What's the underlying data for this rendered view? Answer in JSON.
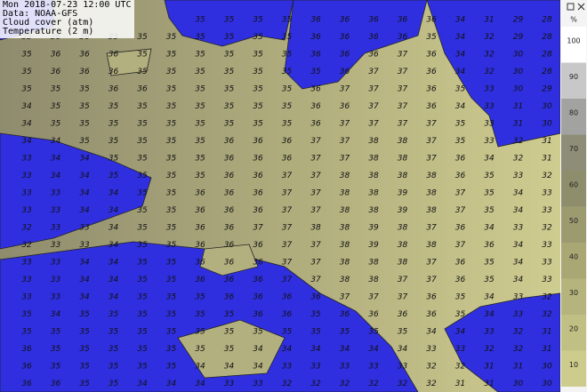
{
  "info": {
    "lines": [
      "Mon 2018-07-23 12:00 UTC",
      "Data: NOAA-GFS",
      "Cloud cover (atm)",
      "Temperature (2 m)"
    ]
  },
  "legend": {
    "unit": "%",
    "labels": [
      100,
      90,
      80,
      70,
      60,
      50,
      40,
      30,
      20,
      10
    ]
  },
  "grid": {
    "rows": [
      [
        null,
        null,
        null,
        null,
        null,
        null,
        35,
        35,
        35,
        35,
        36,
        36,
        36,
        36,
        36,
        34,
        31,
        29,
        28
      ],
      [
        35,
        36,
        36,
        35,
        35,
        35,
        35,
        35,
        35,
        35,
        36,
        36,
        36,
        36,
        35,
        34,
        32,
        29,
        28
      ],
      [
        35,
        36,
        36,
        36,
        35,
        35,
        35,
        35,
        35,
        35,
        36,
        36,
        36,
        37,
        36,
        34,
        32,
        30,
        28
      ],
      [
        35,
        36,
        36,
        36,
        35,
        35,
        35,
        35,
        35,
        35,
        35,
        36,
        37,
        37,
        36,
        34,
        32,
        30,
        28
      ],
      [
        35,
        35,
        35,
        36,
        36,
        35,
        35,
        35,
        35,
        35,
        36,
        37,
        37,
        37,
        36,
        35,
        33,
        30,
        29
      ],
      [
        34,
        35,
        35,
        35,
        35,
        35,
        35,
        35,
        35,
        35,
        36,
        36,
        37,
        37,
        36,
        34,
        33,
        31,
        30
      ],
      [
        34,
        35,
        35,
        35,
        35,
        35,
        35,
        35,
        35,
        35,
        36,
        37,
        37,
        37,
        37,
        35,
        33,
        31,
        30
      ],
      [
        34,
        34,
        35,
        35,
        35,
        35,
        35,
        36,
        36,
        36,
        37,
        37,
        38,
        38,
        37,
        35,
        33,
        32,
        31
      ],
      [
        33,
        34,
        34,
        35,
        35,
        35,
        35,
        36,
        36,
        36,
        37,
        37,
        38,
        38,
        37,
        36,
        34,
        32,
        31
      ],
      [
        33,
        34,
        34,
        35,
        35,
        35,
        35,
        36,
        36,
        37,
        37,
        38,
        38,
        38,
        38,
        36,
        35,
        33,
        32
      ],
      [
        33,
        33,
        34,
        34,
        35,
        35,
        36,
        36,
        36,
        37,
        37,
        38,
        38,
        39,
        38,
        37,
        35,
        34,
        33
      ],
      [
        33,
        33,
        34,
        34,
        35,
        35,
        36,
        36,
        36,
        37,
        37,
        38,
        38,
        39,
        38,
        37,
        35,
        34,
        33
      ],
      [
        32,
        33,
        33,
        34,
        35,
        35,
        36,
        36,
        37,
        37,
        38,
        38,
        39,
        38,
        37,
        36,
        34,
        33,
        32
      ],
      [
        32,
        33,
        33,
        34,
        35,
        35,
        36,
        36,
        36,
        37,
        37,
        38,
        39,
        38,
        38,
        37,
        36,
        34,
        33
      ],
      [
        33,
        33,
        34,
        34,
        35,
        35,
        36,
        36,
        36,
        37,
        37,
        38,
        38,
        38,
        37,
        36,
        35,
        34,
        33
      ],
      [
        33,
        33,
        34,
        34,
        35,
        35,
        36,
        36,
        36,
        37,
        37,
        38,
        38,
        37,
        37,
        36,
        35,
        34,
        33
      ],
      [
        33,
        33,
        34,
        34,
        35,
        35,
        35,
        36,
        36,
        36,
        36,
        37,
        37,
        37,
        36,
        35,
        34,
        33,
        32
      ],
      [
        35,
        34,
        35,
        35,
        35,
        35,
        35,
        35,
        36,
        36,
        35,
        36,
        36,
        36,
        36,
        35,
        34,
        33,
        32
      ],
      [
        35,
        35,
        35,
        35,
        35,
        35,
        35,
        35,
        35,
        35,
        35,
        35,
        35,
        35,
        34,
        34,
        33,
        32,
        31
      ],
      [
        36,
        35,
        35,
        35,
        35,
        35,
        35,
        35,
        34,
        34,
        34,
        34,
        34,
        34,
        33,
        33,
        32,
        32,
        31
      ],
      [
        36,
        35,
        35,
        35,
        35,
        35,
        34,
        34,
        34,
        33,
        33,
        33,
        33,
        33,
        32,
        32,
        31,
        31,
        30
      ],
      [
        36,
        36,
        35,
        35,
        34,
        34,
        34,
        33,
        33,
        32,
        32,
        32,
        32,
        32,
        32,
        31,
        31,
        30,
        30
      ]
    ]
  }
}
